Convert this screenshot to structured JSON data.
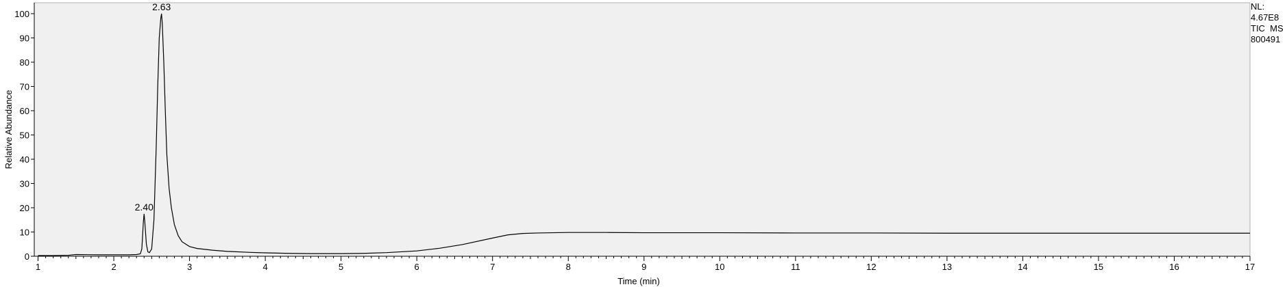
{
  "chart_data": {
    "type": "line",
    "title": "",
    "xlabel": "Time (min)",
    "ylabel": "Relative Abundance",
    "xlim": [
      0.95,
      17
    ],
    "ylim": [
      0,
      100
    ],
    "x_ticks": [
      1,
      2,
      3,
      4,
      5,
      6,
      7,
      8,
      9,
      10,
      11,
      12,
      13,
      14,
      15,
      16,
      17
    ],
    "y_ticks": [
      0,
      10,
      20,
      30,
      40,
      50,
      60,
      70,
      80,
      90,
      100
    ],
    "grid": false,
    "colors": {
      "plot_background": "#f0f0f0",
      "trace": "#000000",
      "axis": "#000000"
    },
    "info_text": [
      "NL:",
      "4.67E8",
      "TIC  MS",
      "800491"
    ],
    "peaks": [
      {
        "label": "2.40",
        "x": 2.4,
        "y": 17.5
      },
      {
        "label": "2.63",
        "x": 2.63,
        "y": 100
      }
    ],
    "series": [
      {
        "x": [
          1.0,
          1.2,
          1.4,
          1.5,
          1.8,
          2.0,
          2.2,
          2.3,
          2.35,
          2.37,
          2.39,
          2.4,
          2.41,
          2.43,
          2.45,
          2.47,
          2.5,
          2.53,
          2.56,
          2.58,
          2.6,
          2.62,
          2.63,
          2.64,
          2.66,
          2.68,
          2.7,
          2.73,
          2.76,
          2.8,
          2.85,
          2.9,
          3.0,
          3.1,
          3.3,
          3.5,
          3.8,
          4.0,
          4.3,
          4.6,
          5.0,
          5.3,
          5.6,
          6.0,
          6.3,
          6.6,
          7.0,
          7.2,
          7.4,
          7.6,
          8.0,
          8.5,
          9.0,
          10.0,
          11.0,
          12.0,
          13.0,
          14.0,
          15.0,
          16.0,
          17.0
        ],
        "y": [
          0.3,
          0.3,
          0.4,
          0.7,
          0.6,
          0.6,
          0.6,
          0.7,
          1.0,
          3.0,
          14.0,
          17.5,
          14.0,
          5.0,
          1.8,
          1.5,
          3.0,
          15.0,
          45.0,
          70.0,
          90.0,
          98.0,
          100.0,
          96.0,
          80.0,
          60.0,
          42.0,
          28.0,
          20.0,
          13.0,
          8.5,
          6.0,
          4.0,
          3.2,
          2.5,
          2.0,
          1.6,
          1.4,
          1.2,
          1.1,
          1.1,
          1.2,
          1.5,
          2.2,
          3.3,
          4.8,
          7.5,
          8.8,
          9.4,
          9.6,
          9.8,
          9.8,
          9.7,
          9.7,
          9.6,
          9.6,
          9.5,
          9.5,
          9.5,
          9.5,
          9.5
        ]
      }
    ]
  }
}
